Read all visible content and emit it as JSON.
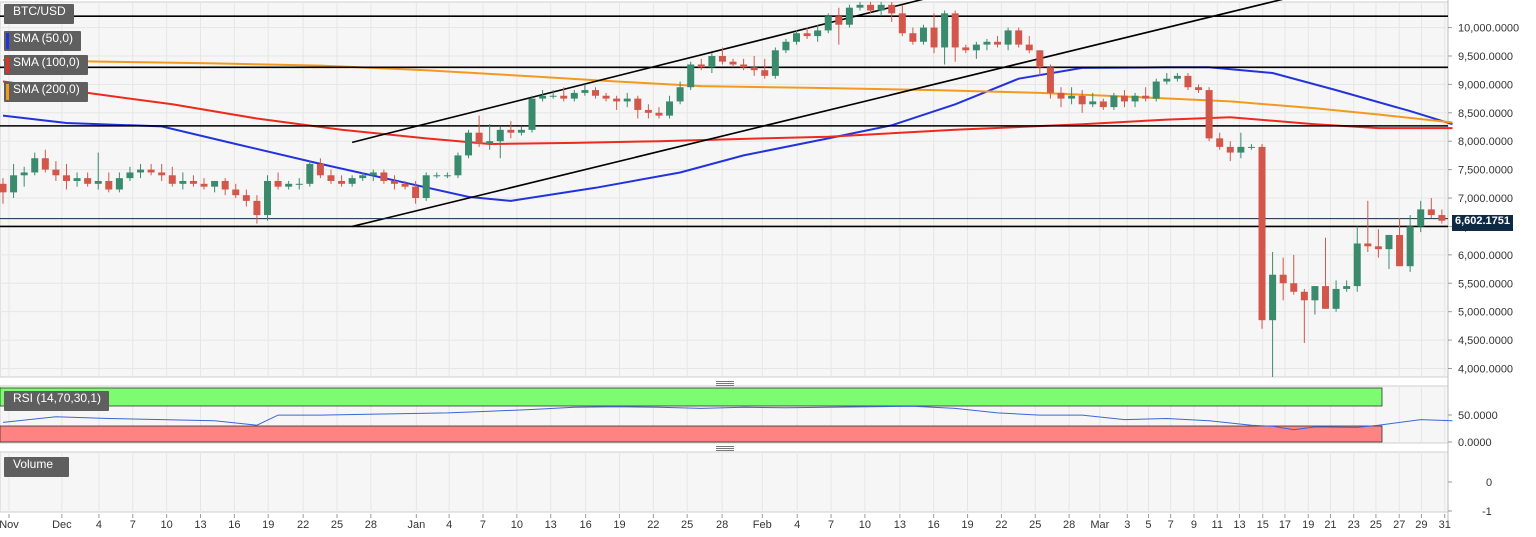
{
  "labels": {
    "symbol": "BTC/USD",
    "sma50": "SMA (50,0)",
    "sma100": "SMA (100,0)",
    "sma200": "SMA (200,0)",
    "rsi": "RSI (14,70,30,1)",
    "volume": "Volume",
    "current_price": "6,602.1751"
  },
  "colors": {
    "up": "#3a8a6e",
    "down": "#d2574a",
    "sma50": "#2233dd",
    "sma100": "#ee2a1e",
    "sma200": "#f39a1e",
    "rsi_line": "#3a66d8",
    "rsi_overbought": "#7dfc72",
    "rsi_oversold": "#ff8383",
    "current_price": "#0f2a45"
  },
  "chart_data": [
    {
      "type": "candlestick",
      "title": "BTC/USD",
      "y_ticks": [
        "4,000.0000",
        "4,500.0000",
        "5,000.0000",
        "5,500.0000",
        "6,000.0000",
        "6,500.0000",
        "7,000.0000",
        "7,500.0000",
        "8,000.0000",
        "8,500.0000",
        "9,000.0000",
        "9,500.0000",
        "10,000.0000"
      ],
      "ylim": [
        3850,
        10450
      ],
      "x_ticks": [
        "Nov",
        "Dec",
        "4",
        "7",
        "10",
        "13",
        "16",
        "19",
        "22",
        "25",
        "28",
        "Jan",
        "4",
        "7",
        "10",
        "13",
        "16",
        "19",
        "22",
        "25",
        "28",
        "Feb",
        "4",
        "7",
        "10",
        "13",
        "16",
        "19",
        "22",
        "25",
        "28",
        "Mar",
        "3",
        "5",
        "7",
        "9",
        "11",
        "13",
        "15",
        "17",
        "19",
        "21",
        "23",
        "25",
        "27",
        "29",
        "31"
      ],
      "current_price": 6602.1751,
      "ohlc": [
        [
          7250,
          7350,
          6900,
          7100
        ],
        [
          7100,
          7600,
          7000,
          7400
        ],
        [
          7400,
          7550,
          7200,
          7450
        ],
        [
          7450,
          7800,
          7400,
          7700
        ],
        [
          7700,
          7850,
          7450,
          7500
        ],
        [
          7500,
          7650,
          7300,
          7400
        ],
        [
          7400,
          7600,
          7150,
          7300
        ],
        [
          7300,
          7450,
          7200,
          7350
        ],
        [
          7350,
          7450,
          7200,
          7250
        ],
        [
          7250,
          7800,
          7150,
          7300
        ],
        [
          7300,
          7450,
          7100,
          7150
        ],
        [
          7150,
          7450,
          7100,
          7350
        ],
        [
          7350,
          7550,
          7300,
          7450
        ],
        [
          7450,
          7600,
          7350,
          7500
        ],
        [
          7500,
          7600,
          7400,
          7450
        ],
        [
          7450,
          7600,
          7300,
          7400
        ],
        [
          7400,
          7550,
          7200,
          7250
        ],
        [
          7250,
          7450,
          7150,
          7300
        ],
        [
          7300,
          7400,
          7200,
          7250
        ],
        [
          7250,
          7350,
          7150,
          7200
        ],
        [
          7200,
          7300,
          7100,
          7300
        ],
        [
          7300,
          7350,
          7050,
          7150
        ],
        [
          7150,
          7250,
          7000,
          7050
        ],
        [
          7050,
          7150,
          6850,
          6950
        ],
        [
          6950,
          7050,
          6550,
          6700
        ],
        [
          6700,
          7400,
          6600,
          7300
        ],
        [
          7300,
          7450,
          7150,
          7200
        ],
        [
          7200,
          7300,
          7150,
          7250
        ],
        [
          7250,
          7350,
          7150,
          7250
        ],
        [
          7250,
          7650,
          7200,
          7600
        ],
        [
          7600,
          7700,
          7350,
          7400
        ],
        [
          7400,
          7500,
          7250,
          7300
        ],
        [
          7300,
          7400,
          7200,
          7250
        ],
        [
          7250,
          7400,
          7200,
          7350
        ],
        [
          7350,
          7450,
          7300,
          7400
        ],
        [
          7400,
          7500,
          7300,
          7450
        ],
        [
          7450,
          7500,
          7250,
          7300
        ],
        [
          7300,
          7400,
          7150,
          7250
        ],
        [
          7250,
          7300,
          7150,
          7200
        ],
        [
          7200,
          7300,
          6900,
          7000
        ],
        [
          7000,
          7450,
          6950,
          7400
        ],
        [
          7400,
          7450,
          7350,
          7400
        ],
        [
          7400,
          7450,
          7350,
          7400
        ],
        [
          7400,
          7800,
          7350,
          7750
        ],
        [
          7750,
          8200,
          7700,
          8150
        ],
        [
          8150,
          8450,
          7900,
          7950
        ],
        [
          7950,
          8300,
          7850,
          8000
        ],
        [
          8000,
          8250,
          7700,
          8200
        ],
        [
          8200,
          8350,
          8050,
          8150
        ],
        [
          8150,
          8250,
          8100,
          8200
        ],
        [
          8200,
          8800,
          8150,
          8750
        ],
        [
          8750,
          8900,
          8700,
          8800
        ],
        [
          8800,
          8900,
          8750,
          8800
        ],
        [
          8800,
          8950,
          8700,
          8750
        ],
        [
          8750,
          8900,
          8700,
          8850
        ],
        [
          8850,
          9000,
          8800,
          8900
        ],
        [
          8900,
          8950,
          8750,
          8800
        ],
        [
          8800,
          8850,
          8700,
          8750
        ],
        [
          8750,
          8800,
          8550,
          8700
        ],
        [
          8700,
          8850,
          8600,
          8750
        ],
        [
          8750,
          8800,
          8400,
          8550
        ],
        [
          8550,
          8650,
          8400,
          8500
        ],
        [
          8500,
          8600,
          8400,
          8450
        ],
        [
          8450,
          8800,
          8400,
          8700
        ],
        [
          8700,
          9050,
          8650,
          8950
        ],
        [
          8950,
          9400,
          8900,
          9350
        ],
        [
          9350,
          9450,
          9250,
          9300
        ],
        [
          9300,
          9550,
          9200,
          9500
        ],
        [
          9500,
          9650,
          9350,
          9400
        ],
        [
          9400,
          9450,
          9300,
          9350
        ],
        [
          9350,
          9450,
          9250,
          9300
        ],
        [
          9300,
          9500,
          9150,
          9250
        ],
        [
          9250,
          9450,
          9100,
          9150
        ],
        [
          9150,
          9650,
          9100,
          9600
        ],
        [
          9600,
          9800,
          9550,
          9750
        ],
        [
          9750,
          9950,
          9700,
          9900
        ],
        [
          9900,
          10000,
          9800,
          9850
        ],
        [
          9850,
          10050,
          9750,
          9950
        ],
        [
          9950,
          10250,
          9900,
          10200
        ],
        [
          10200,
          10350,
          9700,
          10050
        ],
        [
          10050,
          10400,
          10000,
          10350
        ],
        [
          10350,
          10450,
          10300,
          10400
        ],
        [
          10400,
          10450,
          10250,
          10300
        ],
        [
          10300,
          10500,
          10200,
          10400
        ],
        [
          10400,
          10450,
          10100,
          10250
        ],
        [
          10250,
          10400,
          9850,
          9900
        ],
        [
          9900,
          10000,
          9700,
          9750
        ],
        [
          9750,
          10050,
          9700,
          10000
        ],
        [
          10000,
          10250,
          9550,
          9650
        ],
        [
          9650,
          10300,
          9350,
          10250
        ],
        [
          10250,
          10300,
          9400,
          9650
        ],
        [
          9650,
          9700,
          9550,
          9600
        ],
        [
          9600,
          9750,
          9450,
          9700
        ],
        [
          9700,
          9800,
          9600,
          9750
        ],
        [
          9750,
          9850,
          9650,
          9700
        ],
        [
          9700,
          10000,
          9600,
          9950
        ],
        [
          9950,
          10000,
          9650,
          9700
        ],
        [
          9700,
          9850,
          9550,
          9600
        ],
        [
          9600,
          9600,
          9150,
          9300
        ],
        [
          9300,
          9350,
          8750,
          8850
        ],
        [
          8850,
          8950,
          8600,
          8750
        ],
        [
          8750,
          8950,
          8650,
          8800
        ],
        [
          8800,
          8900,
          8500,
          8650
        ],
        [
          8650,
          8850,
          8600,
          8700
        ],
        [
          8700,
          8750,
          8550,
          8600
        ],
        [
          8600,
          8850,
          8550,
          8800
        ],
        [
          8800,
          8900,
          8600,
          8700
        ],
        [
          8700,
          8850,
          8600,
          8800
        ],
        [
          8800,
          8950,
          8700,
          8750
        ],
        [
          8750,
          9100,
          8700,
          9050
        ],
        [
          9050,
          9200,
          9000,
          9100
        ],
        [
          9100,
          9200,
          9050,
          9150
        ],
        [
          9150,
          9200,
          8900,
          8950
        ],
        [
          8950,
          9000,
          8850,
          8900
        ],
        [
          8900,
          8950,
          8000,
          8050
        ],
        [
          8050,
          8150,
          7850,
          7900
        ],
        [
          7900,
          8000,
          7650,
          7800
        ],
        [
          7800,
          8150,
          7700,
          7900
        ],
        [
          7900,
          7950,
          7850,
          7900
        ],
        [
          7900,
          7950,
          4700,
          4850
        ],
        [
          4850,
          6050,
          3850,
          5650
        ],
        [
          5650,
          5950,
          5200,
          5500
        ],
        [
          5500,
          6000,
          5300,
          5350
        ],
        [
          5350,
          5400,
          4450,
          5200
        ],
        [
          5200,
          5450,
          4950,
          5450
        ],
        [
          5450,
          6300,
          5050,
          5050
        ],
        [
          5050,
          5550,
          5000,
          5400
        ],
        [
          5400,
          5550,
          5350,
          5450
        ],
        [
          5450,
          6500,
          5350,
          6200
        ],
        [
          6200,
          6950,
          6050,
          6150
        ],
        [
          6150,
          6450,
          5950,
          6100
        ],
        [
          6100,
          6350,
          5750,
          6350
        ],
        [
          6350,
          6650,
          5850,
          5800
        ],
        [
          5800,
          6700,
          5700,
          6500
        ],
        [
          6500,
          6950,
          6400,
          6800
        ],
        [
          6800,
          7000,
          6650,
          6700
        ],
        [
          6700,
          6800,
          6550,
          6600
        ]
      ],
      "series": [
        {
          "name": "SMA (50,0)",
          "color": "#2233dd",
          "values": [
            [
              0,
              8450
            ],
            [
              6,
              8320
            ],
            [
              15,
              8260
            ],
            [
              22,
              7950
            ],
            [
              30,
              7600
            ],
            [
              38,
              7270
            ],
            [
              44,
              7020
            ],
            [
              48,
              6950
            ],
            [
              56,
              7180
            ],
            [
              64,
              7450
            ],
            [
              70,
              7750
            ],
            [
              78,
              8050
            ],
            [
              84,
              8280
            ],
            [
              90,
              8650
            ],
            [
              96,
              9100
            ],
            [
              102,
              9290
            ],
            [
              110,
              9300
            ],
            [
              114,
              9300
            ],
            [
              120,
              9200
            ],
            [
              126,
              8900
            ],
            [
              133,
              8530
            ],
            [
              137,
              8300
            ]
          ]
        },
        {
          "name": "SMA (100,0)",
          "color": "#ee2a1e",
          "values": [
            [
              0,
              9050
            ],
            [
              8,
              8850
            ],
            [
              16,
              8650
            ],
            [
              24,
              8400
            ],
            [
              32,
              8200
            ],
            [
              40,
              8050
            ],
            [
              46,
              7950
            ],
            [
              54,
              7970
            ],
            [
              62,
              8000
            ],
            [
              70,
              8040
            ],
            [
              78,
              8080
            ],
            [
              90,
              8200
            ],
            [
              102,
              8300
            ],
            [
              110,
              8380
            ],
            [
              116,
              8420
            ],
            [
              124,
              8300
            ],
            [
              130,
              8230
            ],
            [
              137,
              8230
            ]
          ]
        },
        {
          "name": "SMA (200,0)",
          "color": "#f39a1e",
          "values": [
            [
              0,
              9430
            ],
            [
              10,
              9400
            ],
            [
              20,
              9370
            ],
            [
              30,
              9330
            ],
            [
              40,
              9250
            ],
            [
              50,
              9140
            ],
            [
              58,
              9050
            ],
            [
              66,
              8970
            ],
            [
              76,
              8940
            ],
            [
              88,
              8900
            ],
            [
              98,
              8850
            ],
            [
              108,
              8770
            ],
            [
              116,
              8700
            ],
            [
              124,
              8580
            ],
            [
              130,
              8470
            ],
            [
              137,
              8330
            ]
          ]
        }
      ],
      "horizontal_levels": [
        10200,
        9300,
        8270,
        6500
      ],
      "trendlines": [
        {
          "from": [
            33,
            7980
          ],
          "to": [
            87,
            10500
          ]
        },
        {
          "from": [
            33,
            6500
          ],
          "to": [
            121,
            10500
          ]
        }
      ]
    },
    {
      "type": "line",
      "title": "RSI (14,70,30,1)",
      "y_ticks": [
        "50.0000",
        "0.0000"
      ],
      "overbought": 70,
      "oversold": 30,
      "values": [
        [
          0,
          35
        ],
        [
          5,
          45
        ],
        [
          10,
          42
        ],
        [
          15,
          40
        ],
        [
          20,
          38
        ],
        [
          24,
          30
        ],
        [
          26,
          48
        ],
        [
          30,
          48
        ],
        [
          36,
          50
        ],
        [
          42,
          52
        ],
        [
          46,
          55
        ],
        [
          50,
          58
        ],
        [
          54,
          62
        ],
        [
          58,
          63
        ],
        [
          62,
          62
        ],
        [
          66,
          60
        ],
        [
          70,
          62
        ],
        [
          74,
          61
        ],
        [
          78,
          62
        ],
        [
          82,
          63
        ],
        [
          86,
          64
        ],
        [
          90,
          60
        ],
        [
          94,
          52
        ],
        [
          98,
          48
        ],
        [
          102,
          48
        ],
        [
          106,
          40
        ],
        [
          110,
          42
        ],
        [
          114,
          38
        ],
        [
          118,
          30
        ],
        [
          120,
          28
        ],
        [
          122,
          22
        ],
        [
          124,
          27
        ],
        [
          128,
          26
        ],
        [
          130,
          30
        ],
        [
          134,
          40
        ],
        [
          137,
          38
        ]
      ]
    },
    {
      "type": "bar",
      "title": "Volume",
      "y_ticks": [
        "0",
        "-1"
      ],
      "values": []
    }
  ]
}
